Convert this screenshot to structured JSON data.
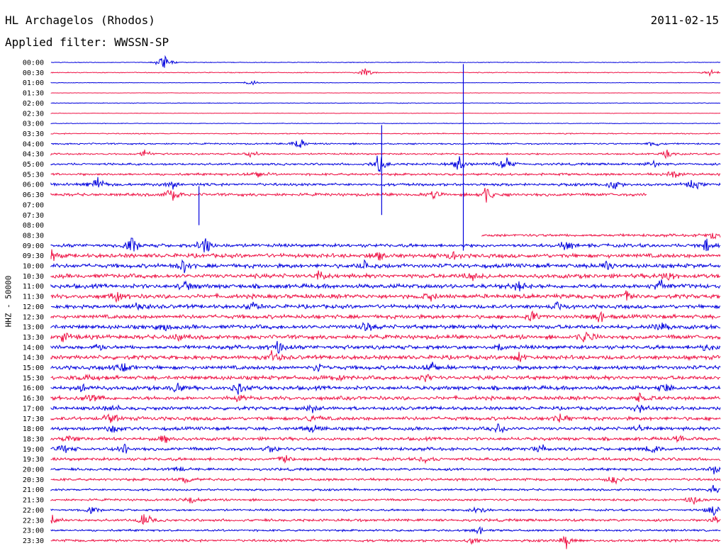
{
  "header": {
    "station": "HL Archagelos (Rhodos)",
    "date": "2011-02-15",
    "filter_text": "Applied filter: WWSSN-SP",
    "channel": "HHZ - 50000"
  },
  "colors": {
    "line_a": "#0000dd",
    "line_b": "#ee1144"
  },
  "chart_data": {
    "type": "helicorder",
    "title": "HL Archagelos (Rhodos)",
    "subtitle": "Applied filter: WWSSN-SP",
    "ylabel": "HHZ - 50000",
    "row_interval_minutes": 30,
    "rows": [
      {
        "label": "00:00",
        "noise": 0.4,
        "events": [
          [
            0.17,
            14
          ]
        ],
        "color": "a"
      },
      {
        "label": "00:30",
        "noise": 0.5,
        "events": [
          [
            0.47,
            6
          ],
          [
            0.985,
            5
          ]
        ],
        "color": "b"
      },
      {
        "label": "01:00",
        "noise": 0.3,
        "events": [
          [
            0.3,
            4
          ]
        ],
        "color": "a"
      },
      {
        "label": "01:30",
        "noise": 0.2,
        "events": [],
        "color": "b"
      },
      {
        "label": "02:00",
        "noise": 0.4,
        "events": [],
        "color": "a"
      },
      {
        "label": "02:30",
        "noise": 0.3,
        "events": [],
        "color": "b"
      },
      {
        "label": "03:00",
        "noise": 0.4,
        "events": [],
        "color": "a"
      },
      {
        "label": "03:30",
        "noise": 0.6,
        "events": [],
        "color": "b"
      },
      {
        "label": "04:00",
        "noise": 0.9,
        "events": [
          [
            0.37,
            10
          ],
          [
            0.9,
            4
          ]
        ],
        "color": "a"
      },
      {
        "label": "04:30",
        "noise": 1.0,
        "events": [
          [
            0.14,
            5
          ],
          [
            0.3,
            4
          ],
          [
            0.92,
            5
          ]
        ],
        "color": "b"
      },
      {
        "label": "05:00",
        "noise": 1.3,
        "events": [
          [
            0.49,
            12
          ],
          [
            0.61,
            9
          ],
          [
            0.68,
            10
          ],
          [
            0.9,
            5
          ]
        ],
        "color": "a"
      },
      {
        "label": "05:30",
        "noise": 1.4,
        "events": [
          [
            0.31,
            5
          ],
          [
            0.93,
            7
          ]
        ],
        "color": "b"
      },
      {
        "label": "06:00",
        "noise": 1.6,
        "events": [
          [
            0.07,
            9
          ],
          [
            0.18,
            6
          ],
          [
            0.84,
            7
          ],
          [
            0.96,
            7
          ]
        ],
        "color": "a"
      },
      {
        "label": "06:30",
        "noise": 1.7,
        "events": [
          [
            0.18,
            12
          ],
          [
            0.57,
            6
          ],
          [
            0.65,
            10
          ]
        ],
        "color": "b"
      },
      {
        "label": "07:00",
        "noise": 0.0,
        "events": [],
        "color": "a"
      },
      {
        "label": "07:30",
        "noise": 0.0,
        "events": [],
        "color": "b"
      },
      {
        "label": "08:00",
        "noise": 0.0,
        "events": [],
        "color": "a"
      },
      {
        "label": "08:30",
        "noise": 1.6,
        "events": [
          [
            0.99,
            5
          ]
        ],
        "color": "b"
      },
      {
        "label": "09:00",
        "noise": 2.0,
        "events": [
          [
            0.12,
            11
          ],
          [
            0.23,
            12
          ],
          [
            0.77,
            6
          ],
          [
            0.98,
            8
          ]
        ],
        "color": "a"
      },
      {
        "label": "09:30",
        "noise": 2.4,
        "events": [
          [
            0.0,
            8
          ],
          [
            0.49,
            6
          ],
          [
            0.6,
            7
          ]
        ],
        "color": "b"
      },
      {
        "label": "10:00",
        "noise": 2.4,
        "events": [
          [
            0.2,
            9
          ],
          [
            0.47,
            7
          ],
          [
            0.83,
            6
          ]
        ],
        "color": "a"
      },
      {
        "label": "10:30",
        "noise": 2.5,
        "events": [
          [
            0.4,
            7
          ],
          [
            0.63,
            6
          ],
          [
            0.92,
            6
          ]
        ],
        "color": "b"
      },
      {
        "label": "11:00",
        "noise": 2.5,
        "events": [
          [
            0.2,
            6
          ],
          [
            0.7,
            6
          ],
          [
            0.91,
            8
          ]
        ],
        "color": "a"
      },
      {
        "label": "11:30",
        "noise": 2.5,
        "events": [
          [
            0.1,
            6
          ],
          [
            0.57,
            6
          ],
          [
            0.86,
            6
          ]
        ],
        "color": "b"
      },
      {
        "label": "12:00",
        "noise": 2.3,
        "events": [
          [
            0.13,
            7
          ],
          [
            0.3,
            7
          ],
          [
            0.76,
            6
          ]
        ],
        "color": "a"
      },
      {
        "label": "12:30",
        "noise": 2.3,
        "events": [
          [
            0.72,
            6
          ],
          [
            0.82,
            8
          ]
        ],
        "color": "b"
      },
      {
        "label": "13:00",
        "noise": 2.4,
        "events": [
          [
            0.17,
            6
          ],
          [
            0.47,
            6
          ],
          [
            0.91,
            6
          ]
        ],
        "color": "a"
      },
      {
        "label": "13:30",
        "noise": 2.4,
        "events": [
          [
            0.02,
            6
          ],
          [
            0.19,
            6
          ],
          [
            0.8,
            8
          ]
        ],
        "color": "b"
      },
      {
        "label": "14:00",
        "noise": 2.3,
        "events": [
          [
            0.07,
            6
          ],
          [
            0.34,
            7
          ],
          [
            0.67,
            6
          ],
          [
            0.98,
            5
          ]
        ],
        "color": "a"
      },
      {
        "label": "14:30",
        "noise": 2.4,
        "events": [
          [
            0.33,
            8
          ],
          [
            0.7,
            7
          ]
        ],
        "color": "b"
      },
      {
        "label": "15:00",
        "noise": 2.3,
        "events": [
          [
            0.11,
            6
          ],
          [
            0.4,
            6
          ],
          [
            0.57,
            7
          ]
        ],
        "color": "a"
      },
      {
        "label": "15:30",
        "noise": 2.3,
        "events": [
          [
            0.05,
            5
          ],
          [
            0.43,
            5
          ],
          [
            0.56,
            6
          ]
        ],
        "color": "b"
      },
      {
        "label": "16:00",
        "noise": 2.3,
        "events": [
          [
            0.05,
            6
          ],
          [
            0.19,
            7
          ],
          [
            0.28,
            7
          ],
          [
            0.92,
            5
          ]
        ],
        "color": "a"
      },
      {
        "label": "16:30",
        "noise": 2.2,
        "events": [
          [
            0.06,
            6
          ],
          [
            0.28,
            6
          ],
          [
            0.88,
            5
          ]
        ],
        "color": "b"
      },
      {
        "label": "17:00",
        "noise": 2.0,
        "events": [
          [
            0.09,
            6
          ],
          [
            0.39,
            5
          ],
          [
            0.88,
            6
          ]
        ],
        "color": "a"
      },
      {
        "label": "17:30",
        "noise": 2.1,
        "events": [
          [
            0.09,
            7
          ],
          [
            0.39,
            6
          ],
          [
            0.76,
            5
          ]
        ],
        "color": "b"
      },
      {
        "label": "18:00",
        "noise": 2.0,
        "events": [
          [
            0.09,
            6
          ],
          [
            0.39,
            6
          ],
          [
            0.67,
            6
          ],
          [
            0.88,
            5
          ]
        ],
        "color": "a"
      },
      {
        "label": "18:30",
        "noise": 1.9,
        "events": [
          [
            0.03,
            5
          ],
          [
            0.17,
            5
          ],
          [
            0.94,
            5
          ]
        ],
        "color": "b"
      },
      {
        "label": "19:00",
        "noise": 1.9,
        "events": [
          [
            0.02,
            6
          ],
          [
            0.11,
            6
          ],
          [
            0.33,
            5
          ],
          [
            0.73,
            6
          ],
          [
            0.9,
            6
          ]
        ],
        "color": "a"
      },
      {
        "label": "19:30",
        "noise": 1.8,
        "events": [
          [
            0.35,
            6
          ],
          [
            0.56,
            4
          ]
        ],
        "color": "b"
      },
      {
        "label": "20:00",
        "noise": 1.5,
        "events": [
          [
            0.19,
            4
          ],
          [
            0.99,
            5
          ]
        ],
        "color": "a"
      },
      {
        "label": "20:30",
        "noise": 1.5,
        "events": [
          [
            0.2,
            5
          ],
          [
            0.84,
            6
          ]
        ],
        "color": "b"
      },
      {
        "label": "21:00",
        "noise": 1.2,
        "events": [
          [
            0.99,
            5
          ]
        ],
        "color": "a"
      },
      {
        "label": "21:30",
        "noise": 1.3,
        "events": [
          [
            0.21,
            5
          ],
          [
            0.96,
            6
          ]
        ],
        "color": "b"
      },
      {
        "label": "22:00",
        "noise": 1.2,
        "events": [
          [
            0.06,
            5
          ],
          [
            0.64,
            8
          ],
          [
            0.99,
            8
          ]
        ],
        "color": "a"
      },
      {
        "label": "22:30",
        "noise": 1.5,
        "events": [
          [
            0.0,
            7
          ],
          [
            0.14,
            9
          ],
          [
            0.99,
            6
          ]
        ],
        "color": "b"
      },
      {
        "label": "23:00",
        "noise": 1.2,
        "events": [
          [
            0.64,
            5
          ]
        ],
        "color": "a"
      },
      {
        "label": "23:30",
        "noise": 1.4,
        "events": [
          [
            0.63,
            5
          ],
          [
            0.77,
            8
          ]
        ],
        "color": "b"
      }
    ],
    "long_spikes": [
      {
        "row_label": "00:30",
        "x_frac": 0.616,
        "reach_rows": 17.5
      },
      {
        "row_label": "03:30",
        "x_frac": 0.494,
        "reach_rows": 8
      },
      {
        "row_label": "06:30",
        "x_frac": 0.221,
        "reach_rows": 3
      }
    ]
  }
}
